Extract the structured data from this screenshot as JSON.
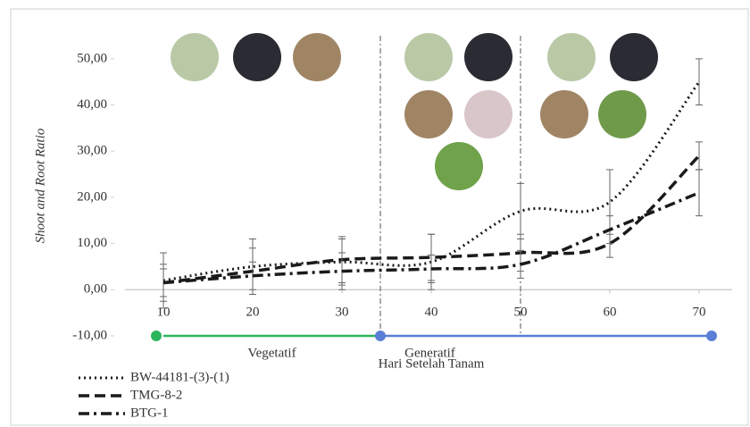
{
  "chart_data": {
    "type": "line",
    "x_label": "Hari Setelah Tanam",
    "y_label": "Shoot and Root Ratio",
    "x": [
      10,
      20,
      30,
      40,
      50,
      60,
      70
    ],
    "xlim": [
      10,
      70
    ],
    "xticks": [
      10,
      20,
      30,
      40,
      50,
      60,
      70
    ],
    "ylim": [
      -10,
      55
    ],
    "yticks": [
      {
        "value": -10,
        "label": "-10,00"
      },
      {
        "value": 0,
        "label": "0,00"
      },
      {
        "value": 10,
        "label": "10,00"
      },
      {
        "value": 20,
        "label": "20,00"
      },
      {
        "value": 30,
        "label": "30,00"
      },
      {
        "value": 40,
        "label": "40,00"
      },
      {
        "value": 50,
        "label": "50,00"
      }
    ],
    "series": [
      {
        "name": "BW-44181-(3)-(1)",
        "color": "#1a1a1a",
        "dash": "dotted",
        "values": [
          2,
          5,
          6,
          6,
          17,
          19,
          45
        ],
        "errors": [
          6,
          6,
          5,
          6,
          6,
          7,
          5
        ]
      },
      {
        "name": "TMG-8-2",
        "color": "#1a1a1a",
        "dash": "dashed",
        "values": [
          1.5,
          4,
          6.5,
          7,
          8,
          10,
          29
        ],
        "errors": [
          4,
          5,
          5,
          5,
          4,
          3,
          3
        ]
      },
      {
        "name": "BTG-1",
        "color": "#1a1a1a",
        "dash": "dashdot",
        "values": [
          1.5,
          3,
          4,
          4.5,
          5.5,
          13,
          21
        ],
        "errors": [
          3,
          3,
          4,
          3,
          3,
          3,
          5
        ]
      }
    ],
    "phases": [
      {
        "label": "Vegetatif",
        "start": 10,
        "end": 34.3,
        "color": "#2db55d"
      },
      {
        "label": "Generatif",
        "start": 34.3,
        "end": 71.4,
        "color": "#5b7fd6"
      }
    ],
    "vlines": [
      34.3,
      50
    ]
  }
}
